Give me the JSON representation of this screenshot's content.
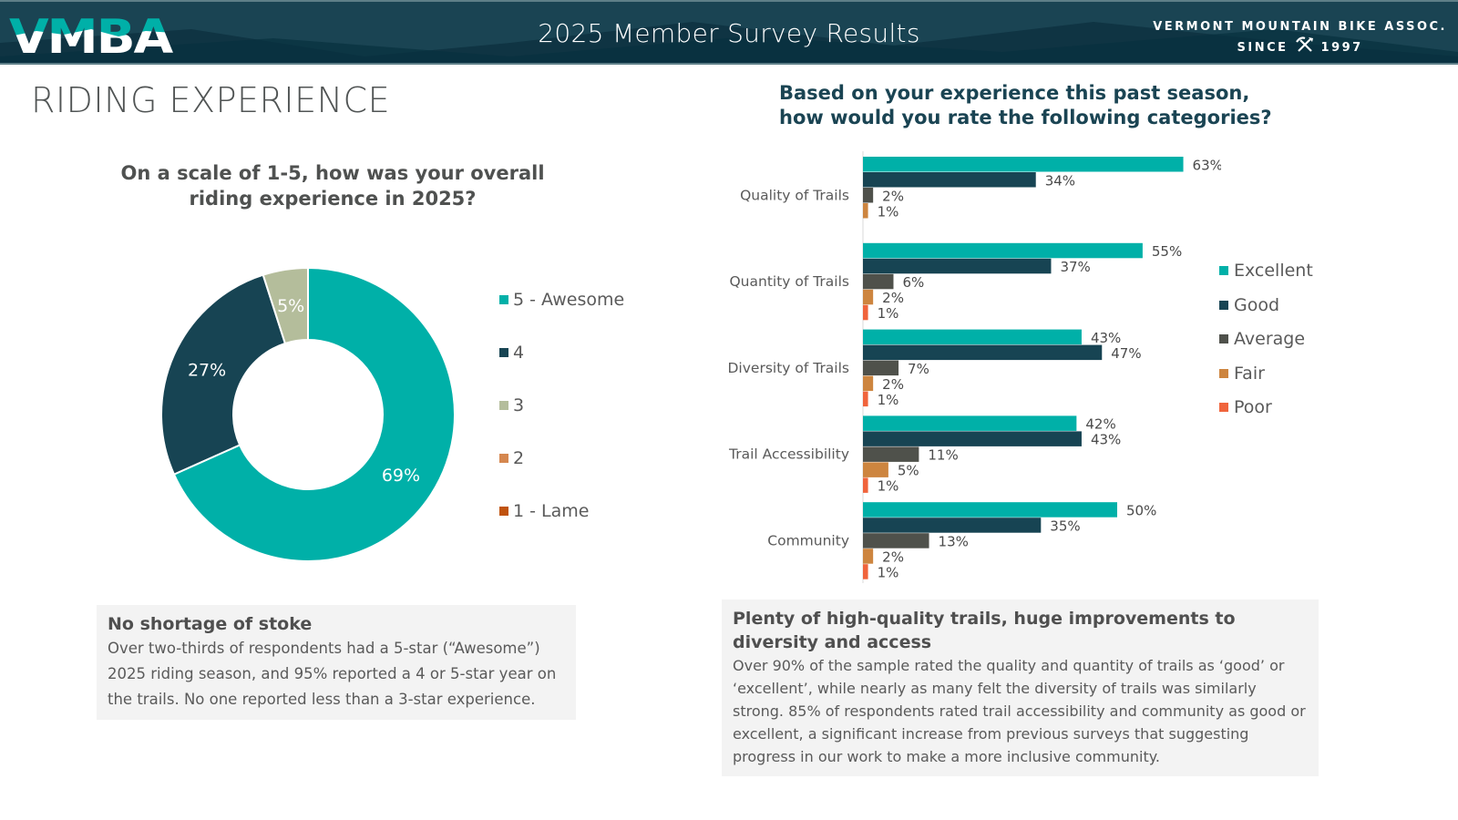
{
  "header": {
    "logo_text": "VMBA",
    "title": "2025 Member Survey Results",
    "org_name": "VERMONT MOUNTAIN BIKE ASSOC.",
    "org_since_label": "SINCE",
    "org_since_year": "1997",
    "org_icon": "crossed-pick-shovel-icon"
  },
  "section": {
    "title": "RIDING EXPERIENCE"
  },
  "colors": {
    "header_bg": "#1a4453",
    "excellent": "#00b0a8",
    "good": "#174453",
    "average": "#4f514b",
    "fair": "#cd853f",
    "poor": "#f0643c",
    "rating_5": "#00b0a8",
    "rating_4": "#174453",
    "rating_3": "#b4bd9b",
    "rating_2": "#d5874f",
    "rating_1": "#c0530e"
  },
  "callouts": {
    "left": {
      "heading": "No shortage of stoke",
      "body": "Over two-thirds of respondents had a 5-star (“Awesome”) 2025 riding season, and 95% reported a 4 or 5-star year on the trails. No one reported less than a 3-star experience."
    },
    "right": {
      "heading": "Plenty of high-quality trails, huge improvements to diversity and access",
      "body": "Over 90% of the sample rated the quality and quantity of trails as ‘good’ or ‘excellent’, while nearly as many felt the diversity of trails was similarly strong. 85% of respondents rated trail accessibility and community as good or excellent, a significant increase from previous surveys that suggesting progress in our work to make a more inclusive community."
    }
  },
  "chart_data": [
    {
      "type": "pie",
      "subtype": "donut",
      "title": "On a scale of 1-5, how was your overall riding experience in 2025?",
      "categories": [
        "5 - Awesome",
        "4",
        "3",
        "2",
        "1 - Lame"
      ],
      "values": [
        69,
        27,
        5,
        0,
        0
      ],
      "data_labels": [
        "69%",
        "27%",
        "5%",
        "",
        ""
      ],
      "colors": [
        "#00b0a8",
        "#174453",
        "#b4bd9b",
        "#d5874f",
        "#c0530e"
      ],
      "legend": "right"
    },
    {
      "type": "bar",
      "orientation": "horizontal",
      "title": "Based on your experience this past season, how would you rate the following categories?",
      "categories": [
        "Quality of Trails",
        "Quantity of Trails",
        "Diversity of Trails",
        "Trail Accessibility",
        "Community"
      ],
      "series": [
        {
          "name": "Excellent",
          "color": "#00b0a8",
          "values": [
            63,
            55,
            43,
            42,
            50
          ]
        },
        {
          "name": "Good",
          "color": "#174453",
          "values": [
            34,
            37,
            47,
            43,
            35
          ]
        },
        {
          "name": "Average",
          "color": "#4f514b",
          "values": [
            2,
            6,
            7,
            11,
            13
          ]
        },
        {
          "name": "Fair",
          "color": "#cd853f",
          "values": [
            1,
            2,
            2,
            5,
            2
          ]
        },
        {
          "name": "Poor",
          "color": "#f0643c",
          "values": [
            null,
            1,
            1,
            1,
            1
          ]
        }
      ],
      "value_suffix": "%",
      "xlim": [
        0,
        70
      ],
      "grid": false,
      "legend": "right"
    }
  ]
}
